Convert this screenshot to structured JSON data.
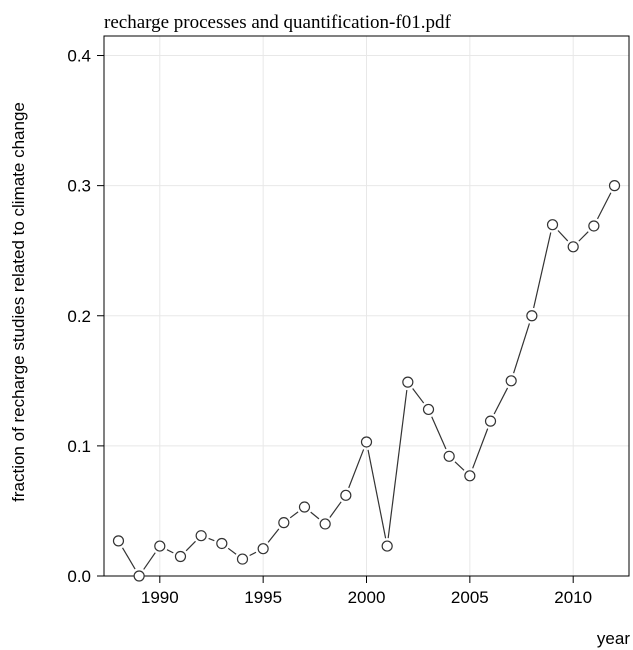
{
  "chart_data": {
    "type": "line",
    "title": "recharge processes and quantification-f01.pdf",
    "xlabel": "year",
    "ylabel": "fraction of recharge studies related to climate change",
    "xlim": [
      1987.3,
      2012.7
    ],
    "ylim": [
      0.0,
      0.415
    ],
    "xticks": [
      1990,
      1995,
      2000,
      2005,
      2010
    ],
    "yticks": [
      "0.0",
      "0.1",
      "0.2",
      "0.3",
      "0.4"
    ],
    "grid": true,
    "markers": "open-circle",
    "series": [
      {
        "x": [
          1988,
          1989,
          1990,
          1991,
          1992,
          1993,
          1994,
          1995,
          1996,
          1997,
          1998,
          1999,
          2000,
          2001,
          2002,
          2003,
          2004,
          2005,
          2006,
          2007,
          2008,
          2009,
          2010,
          2011,
          2012
        ],
        "values": [
          0.027,
          0.0,
          0.023,
          0.015,
          0.031,
          0.025,
          0.013,
          0.021,
          0.041,
          0.053,
          0.04,
          0.062,
          0.103,
          0.023,
          0.149,
          0.128,
          0.092,
          0.077,
          0.119,
          0.15,
          0.2,
          0.27,
          0.253,
          0.269,
          0.3
        ]
      }
    ]
  }
}
